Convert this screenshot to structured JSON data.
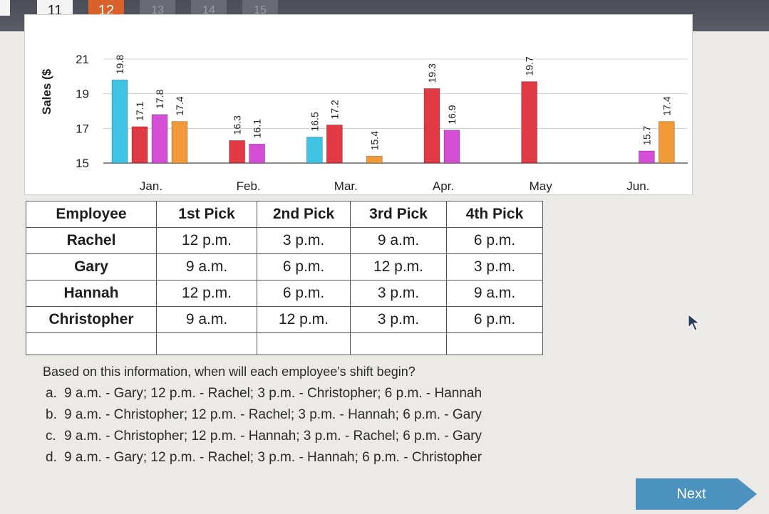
{
  "question_nav": {
    "items": [
      {
        "label": "11",
        "state": "answered"
      },
      {
        "label": "12",
        "state": "current"
      },
      {
        "label": "13",
        "state": "faded"
      },
      {
        "label": "14",
        "state": "faded"
      },
      {
        "label": "15",
        "state": "faded"
      }
    ]
  },
  "chart_data": {
    "type": "bar",
    "ylabel": "Sales ($",
    "ylim": [
      15,
      21
    ],
    "yticks": [
      15,
      17,
      19,
      21
    ],
    "categories": [
      "Jan.",
      "Feb.",
      "Mar.",
      "Apr.",
      "May",
      "Jun."
    ],
    "series": [
      {
        "color": "#3fc4e6",
        "values": [
          19.8,
          null,
          16.5,
          null,
          null,
          null
        ],
        "labels": [
          "19.8",
          null,
          "16.5",
          null,
          null,
          null
        ]
      },
      {
        "color": "#e23a44",
        "values": [
          17.1,
          16.3,
          17.2,
          19.3,
          19.7,
          null
        ],
        "labels": [
          "17.1",
          "16.3",
          "17.2",
          "19.3",
          "19.7",
          null
        ]
      },
      {
        "color": "#d44fd6",
        "values": [
          17.8,
          16.1,
          null,
          16.9,
          null,
          15.7
        ],
        "labels": [
          "17.8",
          "16.1",
          null,
          "16.9",
          null,
          "15.7"
        ]
      },
      {
        "color": "#f19a3a",
        "values": [
          17.4,
          null,
          15.4,
          null,
          null,
          17.4
        ],
        "labels": [
          "17.4",
          null,
          "15.4",
          null,
          null,
          "17.4"
        ]
      }
    ]
  },
  "table": {
    "headers": [
      "Employee",
      "1st Pick",
      "2nd Pick",
      "3rd Pick",
      "4th Pick"
    ],
    "rows": [
      [
        "Rachel",
        "12 p.m.",
        "3 p.m.",
        "9 a.m.",
        "6 p.m."
      ],
      [
        "Gary",
        "9 a.m.",
        "6 p.m.",
        "12 p.m.",
        "3 p.m."
      ],
      [
        "Hannah",
        "12 p.m.",
        "6 p.m.",
        "3 p.m.",
        "9 a.m."
      ],
      [
        "Christopher",
        "9 a.m.",
        "12 p.m.",
        "3 p.m.",
        "6 p.m."
      ]
    ]
  },
  "question": "Based on this information, when will each employee's shift begin?",
  "answers": [
    {
      "letter": "a.",
      "text": "9 a.m. - Gary; 12 p.m. - Rachel; 3 p.m. - Christopher; 6 p.m. - Hannah"
    },
    {
      "letter": "b.",
      "text": "9 a.m. - Christopher; 12 p.m. - Rachel; 3 p.m. - Hannah; 6 p.m. - Gary"
    },
    {
      "letter": "c.",
      "text": "9 a.m. - Christopher; 12 p.m. - Hannah; 3 p.m. - Rachel; 6 p.m. - Gary"
    },
    {
      "letter": "d.",
      "text": "9 a.m. - Gary; 12 p.m. - Rachel; 3 p.m. - Hannah; 6 p.m. - Christopher"
    }
  ],
  "next_label": "Next"
}
